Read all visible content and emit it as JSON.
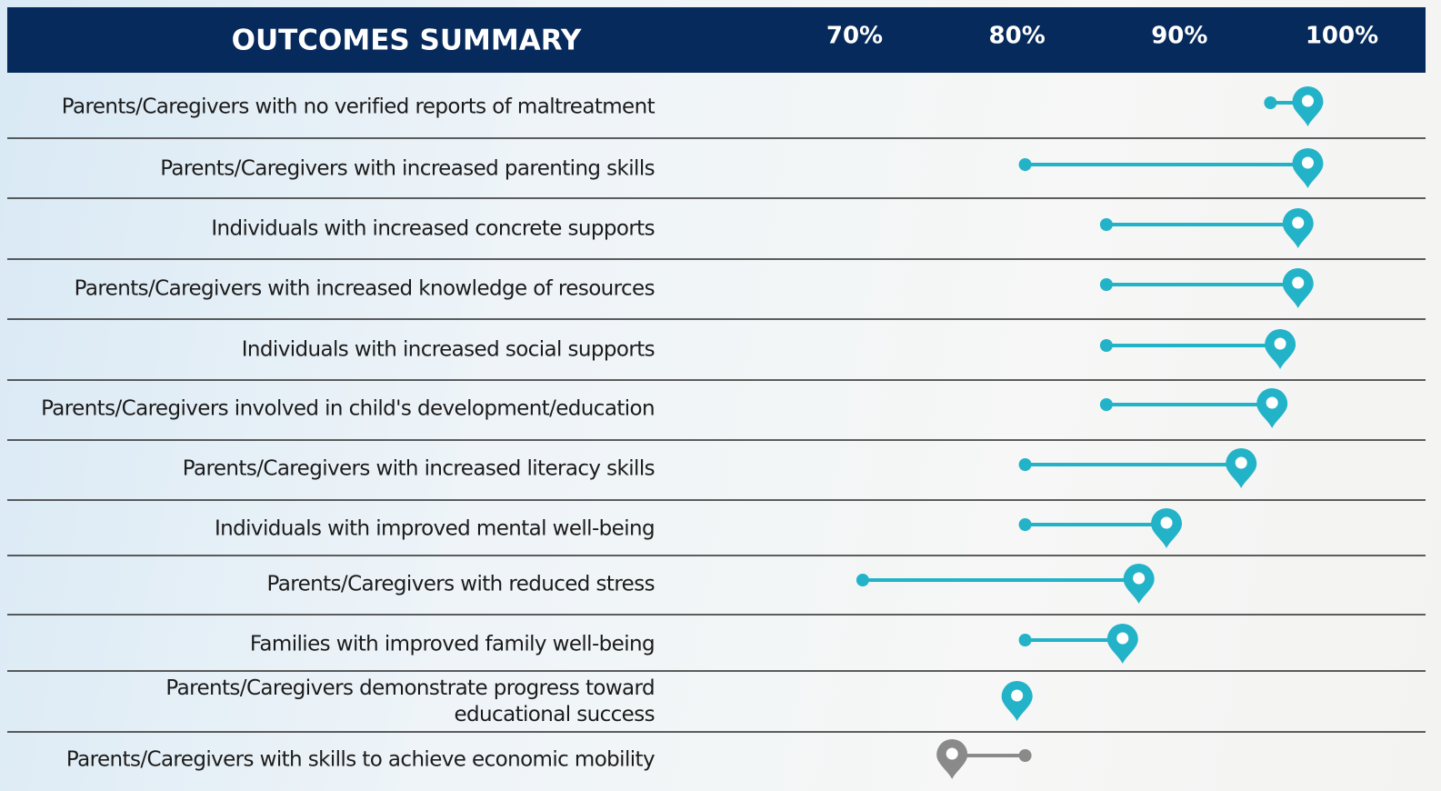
{
  "chart_data": {
    "type": "dumbbell",
    "title": "OUTCOMES SUMMARY",
    "categories": [
      "Parents/Caregivers with no verified reports of maltreatment",
      "Parents/Caregivers with increased parenting skills",
      "Individuals with increased concrete supports",
      "Parents/Caregivers with increased knowledge of resources",
      "Individuals with increased social supports",
      "Parents/Caregivers involved in child's development/education",
      "Parents/Caregivers with increased literacy skills",
      "Individuals with improved mental well-being",
      "Parents/Caregivers with reduced stress",
      "Families with improved family well-being",
      "Parents/Caregivers demonstrate progress toward\neducational success",
      "Parents/Caregivers with skills to achieve economic mobility"
    ],
    "start_values": [
      95.6,
      80.5,
      85.5,
      85.5,
      85.5,
      85.5,
      80.5,
      80.5,
      70.5,
      80.5,
      null,
      80.5
    ],
    "end_values": [
      97.9,
      97.9,
      97.3,
      97.3,
      96.2,
      95.7,
      93.8,
      89.2,
      87.5,
      86.5,
      80,
      76
    ],
    "colors": [
      "#23b3c8",
      "#23b3c8",
      "#23b3c8",
      "#23b3c8",
      "#23b3c8",
      "#23b3c8",
      "#23b3c8",
      "#23b3c8",
      "#23b3c8",
      "#23b3c8",
      "#23b3c8",
      "#8a8a8a"
    ],
    "xlim": [
      70,
      100
    ],
    "xticks": [
      {
        "value": 70,
        "label": "70%"
      },
      {
        "value": 80,
        "label": "80%"
      },
      {
        "value": 90,
        "label": "90%"
      },
      {
        "value": 100,
        "label": "100%"
      }
    ]
  }
}
